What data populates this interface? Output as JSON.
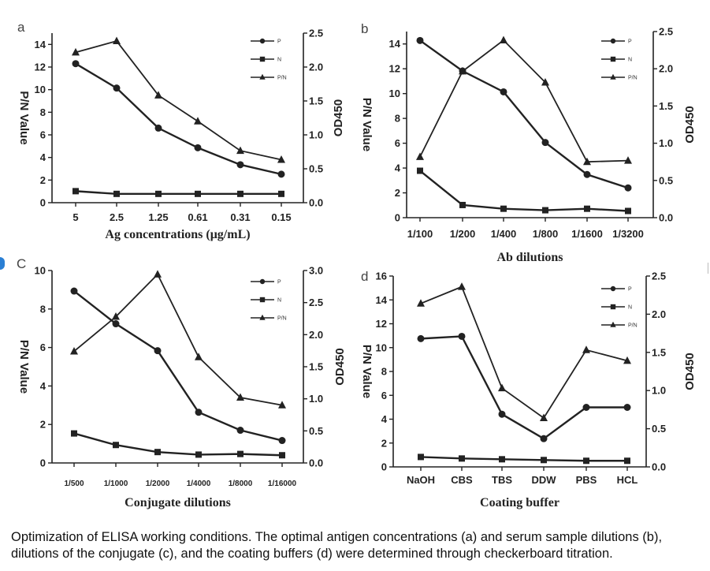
{
  "caption": "Optimization of ELISA working conditions. The optimal antigen concentrations (a) and serum sample dilutions (b), dilutions of the conjugate (c), and the coating buffers (d) were determined through checkerboard titration.",
  "colors": {
    "lines": "#222222",
    "axes": "#222222",
    "background": "#ffffff"
  },
  "chart_data": [
    {
      "panel": "a",
      "type": "line",
      "xlabel": "Ag concentrations (μg/mL)",
      "ylabel": "P/N Value",
      "y2label": "OD450",
      "categories": [
        "5",
        "2.5",
        "1.25",
        "0.61",
        "0.31",
        "0.15"
      ],
      "ylim": [
        0,
        15
      ],
      "y2lim": [
        0,
        2.5
      ],
      "yticks": [
        "0",
        "2",
        "4",
        "6",
        "8",
        "10",
        "12",
        "14"
      ],
      "y2ticks": [
        "0.0",
        "0.5",
        "1.0",
        "1.5",
        "2.0",
        "2.5"
      ],
      "legend": "top-right",
      "series": [
        {
          "name": "P",
          "marker": "circle",
          "axis": "right",
          "values": [
            2.05,
            1.69,
            1.1,
            0.81,
            0.56,
            0.42
          ]
        },
        {
          "name": "N",
          "marker": "square",
          "axis": "right",
          "values": [
            0.17,
            0.13,
            0.13,
            0.13,
            0.13,
            0.13
          ]
        },
        {
          "name": "P/N",
          "marker": "triangle",
          "axis": "left",
          "values": [
            13.3,
            14.3,
            9.5,
            7.2,
            4.6,
            3.8
          ]
        }
      ]
    },
    {
      "panel": "b",
      "type": "line",
      "xlabel": "Ab dilutions",
      "ylabel": "P/N Value",
      "y2label": "OD450",
      "categories": [
        "1/100",
        "1/200",
        "1/400",
        "1/800",
        "1/1600",
        "1/3200"
      ],
      "ylim": [
        0,
        15
      ],
      "y2lim": [
        0,
        2.5
      ],
      "yticks": [
        "0",
        "2",
        "4",
        "6",
        "8",
        "10",
        "12",
        "14"
      ],
      "y2ticks": [
        "0.0",
        "0.5",
        "1.0",
        "1.5",
        "2.0",
        "2.5"
      ],
      "legend": "top-right",
      "series": [
        {
          "name": "P",
          "marker": "circle",
          "axis": "right",
          "values": [
            2.38,
            1.97,
            1.69,
            1.01,
            0.58,
            0.4
          ]
        },
        {
          "name": "N",
          "marker": "square",
          "axis": "right",
          "values": [
            0.63,
            0.17,
            0.12,
            0.1,
            0.12,
            0.09
          ]
        },
        {
          "name": "P/N",
          "marker": "triangle",
          "axis": "left",
          "values": [
            4.9,
            11.8,
            14.3,
            10.9,
            4.5,
            4.6
          ]
        }
      ]
    },
    {
      "panel": "C",
      "type": "line",
      "xlabel": "Conjugate dilutions",
      "ylabel": "P/N Value",
      "y2label": "OD450",
      "categories": [
        "1/500",
        "1/1000",
        "1/2000",
        "1/4000",
        "1/8000",
        "1/16000"
      ],
      "ylim": [
        0,
        10
      ],
      "y2lim": [
        0,
        3.0
      ],
      "yticks": [
        "0",
        "2",
        "4",
        "6",
        "8",
        "10"
      ],
      "y2ticks": [
        "0.0",
        "0.5",
        "1.0",
        "1.5",
        "2.0",
        "2.5",
        "3.0"
      ],
      "legend": "top-right",
      "series": [
        {
          "name": "P",
          "marker": "circle",
          "axis": "right",
          "values": [
            2.68,
            2.17,
            1.75,
            0.79,
            0.51,
            0.35
          ]
        },
        {
          "name": "N",
          "marker": "square",
          "axis": "right",
          "values": [
            0.46,
            0.28,
            0.17,
            0.13,
            0.14,
            0.12
          ]
        },
        {
          "name": "P/N",
          "marker": "triangle",
          "axis": "left",
          "values": [
            5.8,
            7.6,
            9.8,
            5.5,
            3.4,
            3.0
          ]
        }
      ]
    },
    {
      "panel": "d",
      "type": "line",
      "xlabel": "Coating buffer",
      "ylabel": "P/N Value",
      "y2label": "OD450",
      "categories": [
        "NaOH",
        "CBS",
        "TBS",
        "DDW",
        "PBS",
        "HCL"
      ],
      "ylim": [
        0,
        16
      ],
      "y2lim": [
        0,
        2.5
      ],
      "yticks": [
        "0",
        "2",
        "4",
        "6",
        "8",
        "10",
        "12",
        "14",
        "16"
      ],
      "y2ticks": [
        "0.0",
        "0.5",
        "1.0",
        "1.5",
        "2.0",
        "2.5"
      ],
      "legend": "top-right",
      "series": [
        {
          "name": "P",
          "marker": "circle",
          "axis": "right",
          "values": [
            1.68,
            1.71,
            0.69,
            0.37,
            0.78,
            0.78
          ]
        },
        {
          "name": "N",
          "marker": "square",
          "axis": "right",
          "values": [
            0.13,
            0.11,
            0.1,
            0.09,
            0.08,
            0.08
          ]
        },
        {
          "name": "P/N",
          "marker": "triangle",
          "axis": "left",
          "values": [
            13.7,
            15.1,
            6.6,
            4.1,
            9.8,
            8.9
          ]
        }
      ]
    }
  ]
}
